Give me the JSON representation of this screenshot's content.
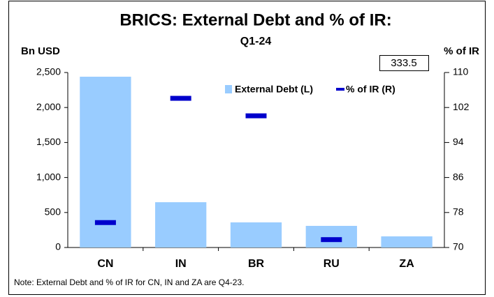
{
  "chart_data": {
    "type": "bar",
    "title": "BRICS: External Debt and % of IR:",
    "subtitle": "Q1-24",
    "y_label": "Bn USD",
    "y2_label": "% of IR",
    "note": "Note: External Debt and % of IR for CN, IN and ZA are Q4-23.",
    "categories": [
      "CN",
      "IN",
      "BR",
      "RU",
      "ZA"
    ],
    "series": [
      {
        "name": "External Debt (L)",
        "color": "#99ccff",
        "type": "bar",
        "values": [
          2440,
          647,
          359,
          309,
          159
        ]
      },
      {
        "name": "% of IR (R)",
        "color": "#0000cc",
        "type": "marker",
        "axis": "y2",
        "values": [
          75.7,
          104.1,
          100.1,
          71.8,
          333.5
        ],
        "value_labels": [
          null,
          null,
          null,
          null,
          "333.5"
        ]
      }
    ],
    "ylim": [
      0,
      2500
    ],
    "yticks": [
      0,
      500,
      {
        "value": 1000,
        "label": "1,000"
      },
      {
        "value": 1500,
        "label": "1,500"
      },
      {
        "value": 2000,
        "label": "2,000"
      },
      {
        "value": 2500,
        "label": "2,500"
      }
    ],
    "y2lim": [
      70,
      110
    ],
    "y2ticks": [
      70,
      78,
      86,
      94,
      102,
      110
    ],
    "grid": false,
    "legend": "top-right"
  }
}
